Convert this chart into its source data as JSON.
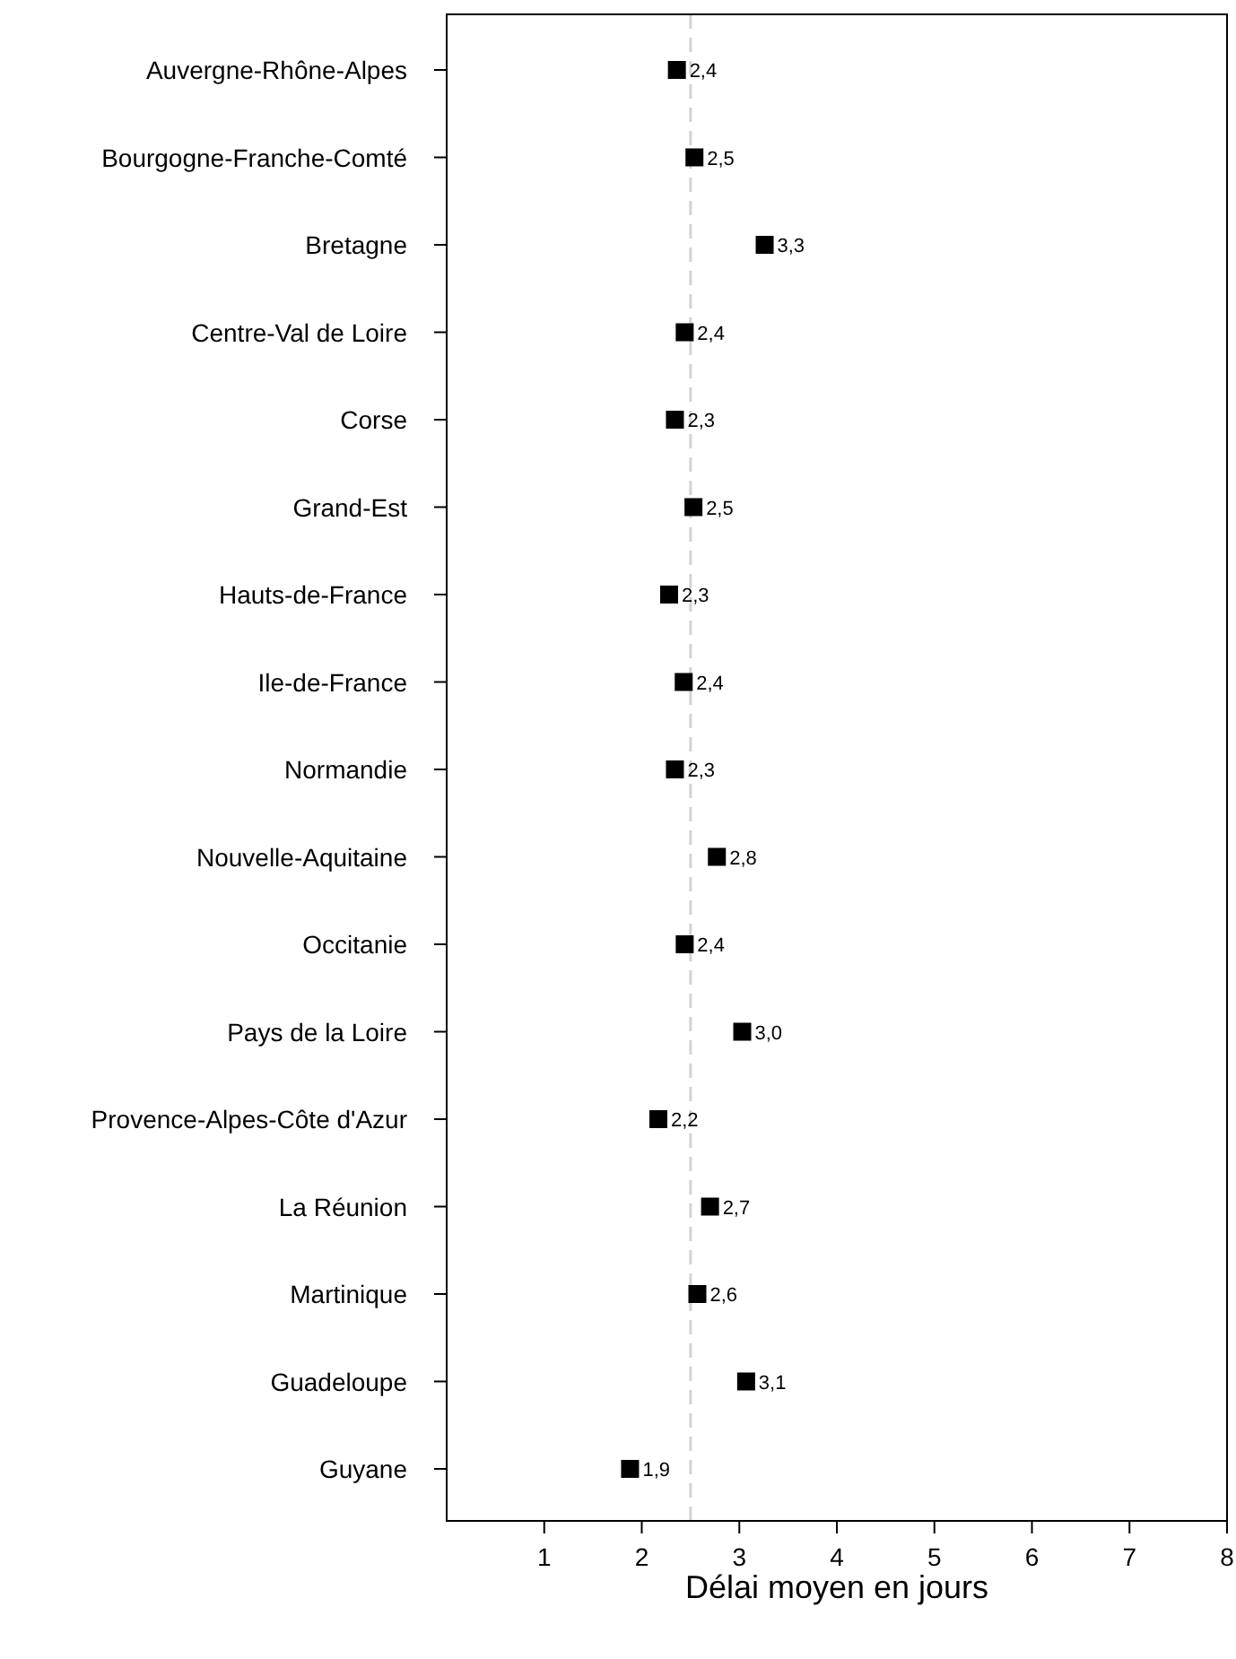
{
  "chart_data": {
    "type": "scatter",
    "orientation": "horizontal",
    "xlabel": "Délai moyen en jours",
    "categories": [
      "Auvergne-Rhône-Alpes",
      "Bourgogne-Franche-Comté",
      "Bretagne",
      "Centre-Val de Loire",
      "Corse",
      "Grand-Est",
      "Hauts-de-France",
      "Ile-de-France",
      "Normandie",
      "Nouvelle-Aquitaine",
      "Occitanie",
      "Pays de la Loire",
      "Provence-Alpes-Côte d'Azur",
      "La Réunion",
      "Martinique",
      "Guadeloupe",
      "Guyane"
    ],
    "values": [
      2.36,
      2.54,
      3.26,
      2.44,
      2.34,
      2.53,
      2.28,
      2.43,
      2.34,
      2.77,
      2.44,
      3.03,
      2.17,
      2.7,
      2.57,
      3.07,
      1.88
    ],
    "value_labels": [
      "2,4",
      "2,5",
      "3,3",
      "2,4",
      "2,3",
      "2,5",
      "2,3",
      "2,4",
      "2,3",
      "2,8",
      "2,4",
      "3,0",
      "2,2",
      "2,7",
      "2,6",
      "3,1",
      "1,9"
    ],
    "color": "#000000",
    "marker": "square",
    "xlim": [
      0,
      8
    ],
    "xticks": [
      1,
      2,
      3,
      4,
      5,
      6,
      7,
      8
    ],
    "ref_lines": [
      {
        "axis": "x",
        "value": 2.5,
        "color": "#d3d3d3",
        "line_style": "dashed"
      }
    ],
    "grid": false
  }
}
